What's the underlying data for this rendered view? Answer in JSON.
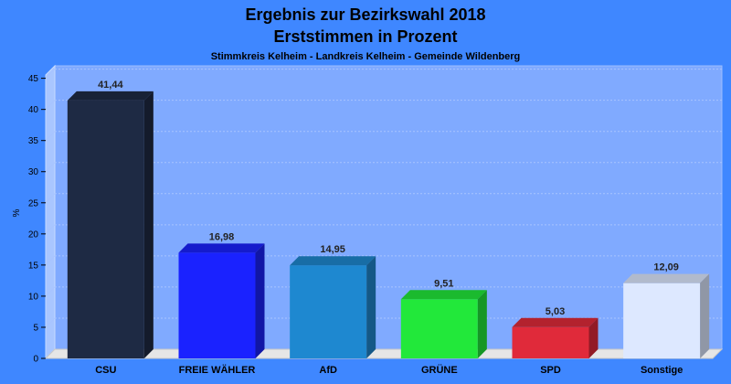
{
  "chart_data": {
    "type": "bar",
    "title": "Ergebnis zur Bezirkswahl 2018",
    "subtitle": "Erststimmen in Prozent",
    "subtitle2": "Stimmkreis Kelheim - Landkreis Kelheim - Gemeinde Wildenberg",
    "ylabel": "%",
    "xlabel": "",
    "ylim": [
      0,
      47
    ],
    "yticks": [
      0,
      5,
      10,
      15,
      20,
      25,
      30,
      35,
      40,
      45
    ],
    "grid": true,
    "categories": [
      "CSU",
      "FREIE WÄHLER",
      "AfD",
      "GRÜNE",
      "SPD",
      "Sonstige"
    ],
    "values": [
      41.44,
      16.98,
      14.95,
      9.51,
      5.03,
      12.09
    ],
    "value_labels": [
      "41,44",
      "16,98",
      "14,95",
      "9,51",
      "5,03",
      "12,09"
    ],
    "colors": [
      "#1e2a44",
      "#1a22ff",
      "#1e88d0",
      "#22e83a",
      "#e02a3a",
      "#dde8ff"
    ]
  }
}
